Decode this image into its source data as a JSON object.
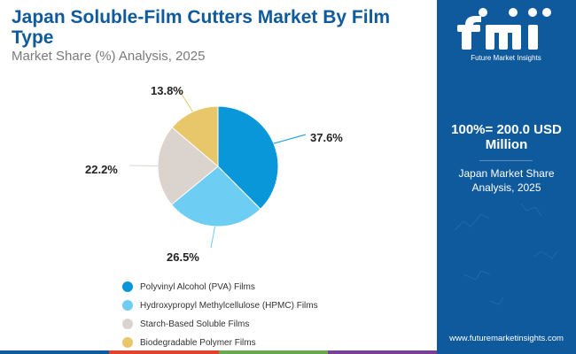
{
  "header": {
    "title": "Japan Soluble-Film Cutters Market By Film Type",
    "subtitle": "Market Share (%) Analysis, 2025"
  },
  "chart_data": {
    "type": "pie",
    "title": "Japan Soluble-Film Cutters Market By Film Type",
    "subtitle": "Market Share (%) Analysis, 2025",
    "categories": [
      "Polyvinyl Alcohol (PVA) Films",
      "Hydroxypropyl Methylcellulose (HPMC) Films",
      "Starch-Based Soluble Films",
      "Biodegradable Polymer Films"
    ],
    "values": [
      37.6,
      26.5,
      22.2,
      13.8
    ],
    "labels": [
      "37.6%",
      "26.5%",
      "22.2%",
      "13.8%"
    ],
    "colors": [
      "#0a97d9",
      "#6dcdf2",
      "#dbd4ce",
      "#e8c76a"
    ],
    "legend_position": "bottom"
  },
  "sidebar": {
    "logo_text": "fmi",
    "logo_caption": "Future Market Insights",
    "total": "100%= 200.0 USD Million",
    "market_share": "Japan Market Share Analysis, 2025",
    "website": "www.futuremarketinsights.com"
  },
  "colors": {
    "brand_blue": "#0f5a9c",
    "title_blue": "#0f5a9c",
    "bottom_bar": [
      "#0f5a9c",
      "#e2432e",
      "#6aa84f",
      "#7b3f98"
    ]
  }
}
